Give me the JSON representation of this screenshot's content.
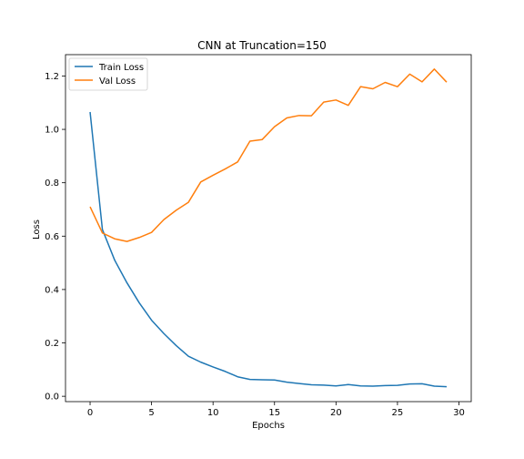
{
  "chart_data": {
    "type": "line",
    "title": "CNN at Truncation=150",
    "xlabel": "Epochs",
    "ylabel": "Loss",
    "xlim": [
      -2,
      31
    ],
    "ylim": [
      -0.02,
      1.28
    ],
    "xticks": [
      0,
      5,
      10,
      15,
      20,
      25,
      30
    ],
    "xtick_labels": [
      "0",
      "5",
      "10",
      "15",
      "20",
      "25",
      "30"
    ],
    "yticks": [
      0.0,
      0.2,
      0.4,
      0.6,
      0.8,
      1.0,
      1.2
    ],
    "ytick_labels": [
      "0.0",
      "0.2",
      "0.4",
      "0.6",
      "0.8",
      "1.0",
      "1.2"
    ],
    "grid": false,
    "legend_position": "top-left",
    "x": [
      0,
      1,
      2,
      3,
      4,
      5,
      6,
      7,
      8,
      9,
      10,
      11,
      12,
      13,
      14,
      15,
      16,
      17,
      18,
      19,
      20,
      21,
      22,
      23,
      24,
      25,
      26,
      27,
      28,
      29
    ],
    "series": [
      {
        "name": "Train Loss",
        "color": "#1f77b4",
        "values": [
          1.065,
          0.625,
          0.51,
          0.425,
          0.35,
          0.285,
          0.235,
          0.19,
          0.15,
          0.128,
          0.11,
          0.093,
          0.073,
          0.063,
          0.062,
          0.061,
          0.053,
          0.048,
          0.043,
          0.042,
          0.039,
          0.044,
          0.039,
          0.038,
          0.04,
          0.041,
          0.046,
          0.047,
          0.038,
          0.036
        ]
      },
      {
        "name": "Val Loss",
        "color": "#ff7f0e",
        "values": [
          0.71,
          0.612,
          0.59,
          0.58,
          0.595,
          0.614,
          0.662,
          0.697,
          0.727,
          0.803,
          0.828,
          0.852,
          0.878,
          0.956,
          0.962,
          1.01,
          1.043,
          1.052,
          1.051,
          1.102,
          1.11,
          1.09,
          1.16,
          1.152,
          1.176,
          1.16,
          1.207,
          1.178,
          1.226,
          1.177
        ]
      }
    ]
  }
}
